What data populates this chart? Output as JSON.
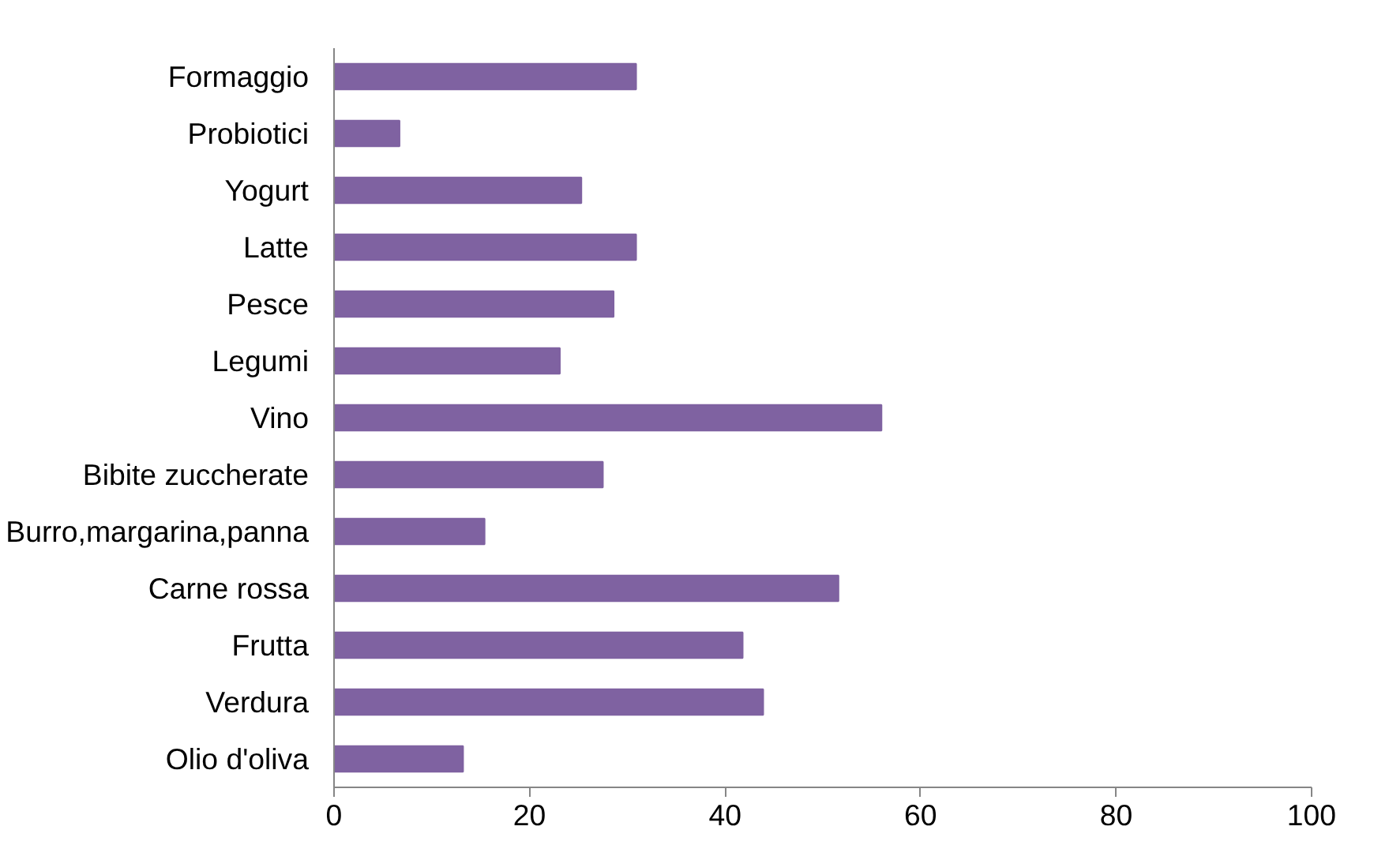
{
  "chart_data": {
    "type": "bar",
    "orientation": "horizontal",
    "categories": [
      "Formaggio",
      "Probiotici",
      "Yogurt",
      "Latte",
      "Pesce",
      "Legumi",
      "Vino",
      "Bibite zuccherate",
      "Burro,margarina,panna",
      "Carne rossa",
      "Frutta",
      "Verdura",
      "Olio d'oliva"
    ],
    "values": [
      30.9,
      6.7,
      25.3,
      30.9,
      28.6,
      23.1,
      56.0,
      27.5,
      15.4,
      51.6,
      41.8,
      43.9,
      13.2
    ],
    "color": "#7f62a1",
    "xlim": [
      0,
      100
    ],
    "xticks": [
      0,
      20,
      40,
      60,
      80,
      100
    ],
    "grid": false
  }
}
